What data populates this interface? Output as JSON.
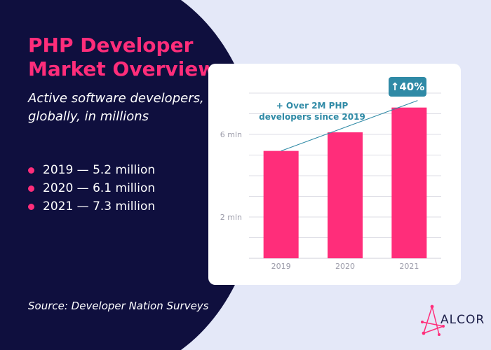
{
  "title": "PHP Developer Market Overview",
  "subtitle": "Active software developers, globally, in millions",
  "legend_items": [
    "2019 — 5.2 million",
    "2020 — 6.1 million",
    "2021 — 7.3 million"
  ],
  "source": "Source: Developer Nation Surveys",
  "logo_text": "ALCOR",
  "colors": {
    "background": "#e4e8f8",
    "dark_panel": "#0f0f3e",
    "accent_pink": "#ff2d7a",
    "teal": "#2f8aa6"
  },
  "chart_data": {
    "type": "bar",
    "categories": [
      "2019",
      "2020",
      "2021"
    ],
    "values": [
      5.2,
      6.1,
      7.3
    ],
    "ytick_values": [
      2,
      6
    ],
    "ytick_labels": [
      "2 mln",
      "6 mln"
    ],
    "ylim": [
      0,
      8
    ],
    "grid": true,
    "annotation": "+ Over 2M PHP developers since 2019",
    "badge": "↑40%",
    "trend_line": {
      "from": "2019",
      "to": "2021"
    }
  }
}
